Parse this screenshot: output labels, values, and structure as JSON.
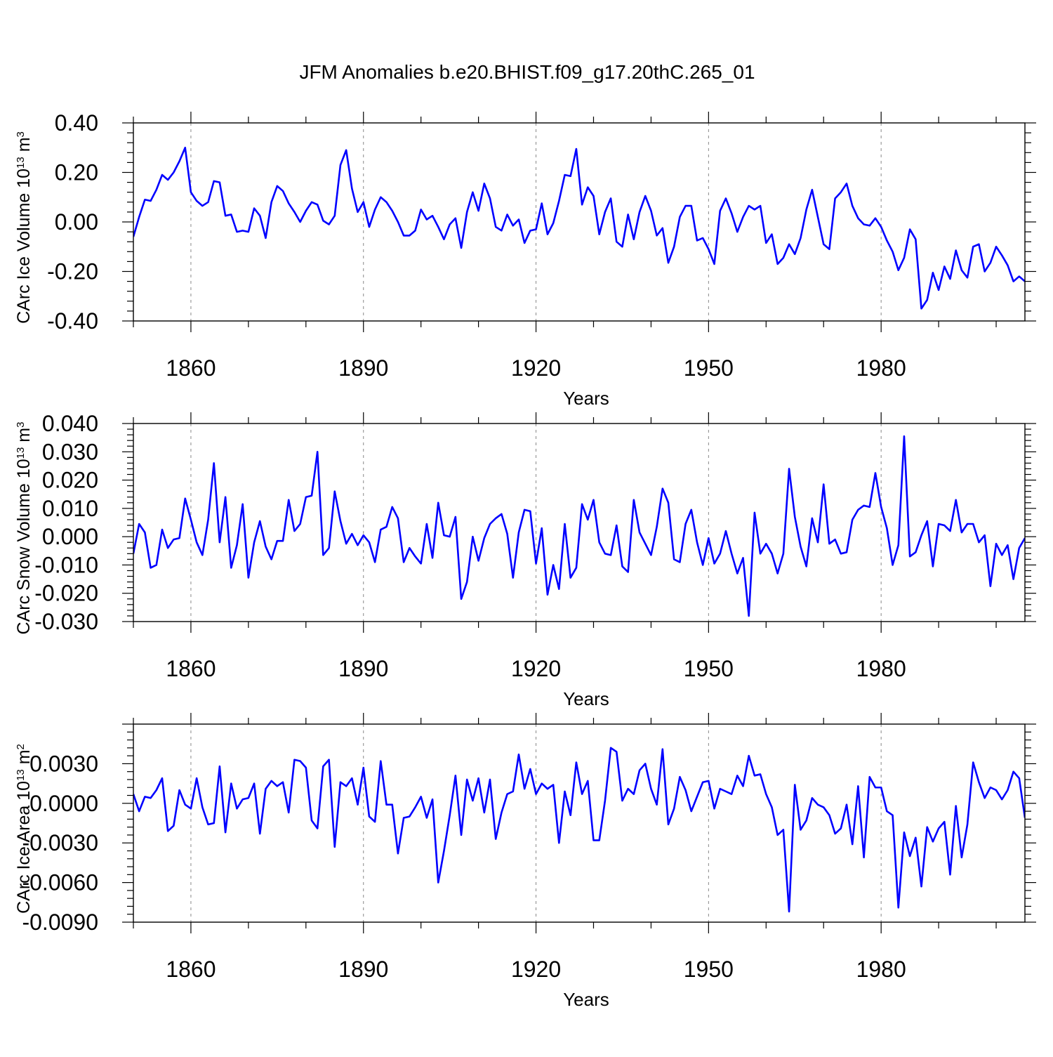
{
  "title": "JFM Anomalies b.e20.BHIST.f09_g17.20thC.265_01",
  "colors": {
    "line": "#0000ff",
    "axes": "#000000",
    "grid": "#888888"
  },
  "chart_data": [
    {
      "type": "line",
      "ylabel": "CArc Ice Volume 10",
      "ylabel_exp": "13",
      "ylabel_unit": " m",
      "ylabel_unit_exp": "3",
      "xlabel": "Years",
      "xlim": [
        1850,
        2005
      ],
      "ylim": [
        -0.4,
        0.4
      ],
      "xticks": [
        1860,
        1890,
        1920,
        1950,
        1980
      ],
      "yticks": [
        -0.4,
        -0.2,
        0.0,
        0.2,
        0.4
      ],
      "ytick_labels": [
        "-0.40",
        "-0.20",
        "0.00",
        "0.20",
        "0.40"
      ],
      "series": [
        {
          "name": "CArc Ice Volume",
          "x_start": 1850,
          "values": [
            -0.06,
            0.02,
            0.09,
            0.085,
            0.13,
            0.19,
            0.17,
            0.2,
            0.245,
            0.3,
            0.12,
            0.085,
            0.065,
            0.08,
            0.165,
            0.16,
            0.025,
            0.03,
            -0.04,
            -0.035,
            -0.04,
            0.055,
            0.025,
            -0.065,
            0.08,
            0.145,
            0.125,
            0.075,
            0.04,
            0.0,
            0.045,
            0.08,
            0.07,
            0.005,
            -0.01,
            0.025,
            0.23,
            0.29,
            0.135,
            0.04,
            0.08,
            -0.02,
            0.05,
            0.1,
            0.08,
            0.045,
            0.0,
            -0.055,
            -0.055,
            -0.035,
            0.05,
            0.01,
            0.025,
            -0.02,
            -0.07,
            -0.01,
            0.015,
            -0.105,
            0.04,
            0.12,
            0.045,
            0.155,
            0.095,
            -0.02,
            -0.035,
            0.03,
            -0.015,
            0.01,
            -0.085,
            -0.035,
            -0.03,
            0.075,
            -0.05,
            -0.005,
            0.085,
            0.19,
            0.185,
            0.295,
            0.07,
            0.14,
            0.105,
            -0.05,
            0.04,
            0.095,
            -0.08,
            -0.1,
            0.03,
            -0.07,
            0.04,
            0.105,
            0.045,
            -0.055,
            -0.025,
            -0.165,
            -0.1,
            0.02,
            0.065,
            0.065,
            -0.075,
            -0.065,
            -0.11,
            -0.17,
            0.045,
            0.095,
            0.035,
            -0.04,
            0.02,
            0.065,
            0.05,
            0.065,
            -0.085,
            -0.05,
            -0.17,
            -0.145,
            -0.09,
            -0.13,
            -0.065,
            0.05,
            0.13,
            0.02,
            -0.09,
            -0.11,
            0.095,
            0.12,
            0.155,
            0.065,
            0.015,
            -0.01,
            -0.015,
            0.015,
            -0.02,
            -0.075,
            -0.12,
            -0.195,
            -0.145,
            -0.03,
            -0.07,
            -0.35,
            -0.315,
            -0.205,
            -0.275,
            -0.18,
            -0.23,
            -0.115,
            -0.195,
            -0.225,
            -0.1,
            -0.09,
            -0.2,
            -0.165,
            -0.1,
            -0.135,
            -0.175,
            -0.24,
            -0.22,
            -0.24
          ]
        }
      ]
    },
    {
      "type": "line",
      "ylabel": "CArc Snow Volume 10",
      "ylabel_exp": "13",
      "ylabel_unit": " m",
      "ylabel_unit_exp": "3",
      "xlabel": "Years",
      "xlim": [
        1850,
        2005
      ],
      "ylim": [
        -0.03,
        0.04
      ],
      "xticks": [
        1860,
        1890,
        1920,
        1950,
        1980
      ],
      "yticks": [
        -0.03,
        -0.02,
        -0.01,
        0.0,
        0.01,
        0.02,
        0.03,
        0.04
      ],
      "ytick_labels": [
        "-0.030",
        "-0.020",
        "-0.010",
        "0.000",
        "0.010",
        "0.020",
        "0.030",
        "0.040"
      ],
      "series": [
        {
          "name": "CArc Snow Volume",
          "x_start": 1850,
          "values": [
            -0.006,
            0.0045,
            0.0015,
            -0.011,
            -0.01,
            0.0025,
            -0.004,
            -0.001,
            -0.0005,
            0.0135,
            0.006,
            -0.002,
            -0.0065,
            0.006,
            0.026,
            -0.002,
            0.014,
            -0.011,
            -0.003,
            0.0115,
            -0.0145,
            -0.002,
            0.0055,
            -0.0035,
            -0.008,
            -0.0015,
            -0.0015,
            0.013,
            0.002,
            0.0045,
            0.014,
            0.0145,
            0.03,
            -0.0065,
            -0.004,
            0.016,
            0.0055,
            -0.0025,
            0.001,
            -0.003,
            0.0005,
            -0.002,
            -0.009,
            0.0025,
            0.0035,
            0.0105,
            0.0065,
            -0.009,
            -0.004,
            -0.007,
            -0.0095,
            0.0045,
            -0.0075,
            0.012,
            0.0005,
            0.0,
            0.007,
            -0.022,
            -0.016,
            0.0,
            -0.0085,
            -0.0005,
            0.0045,
            0.0065,
            0.008,
            0.001,
            -0.0145,
            0.0015,
            0.0095,
            0.009,
            -0.0095,
            0.003,
            -0.0205,
            -0.01,
            -0.0185,
            0.0045,
            -0.0145,
            -0.011,
            0.0115,
            0.006,
            0.013,
            -0.002,
            -0.006,
            -0.0065,
            0.004,
            -0.0105,
            -0.0125,
            0.013,
            0.0015,
            -0.0025,
            -0.0065,
            0.0035,
            0.017,
            0.012,
            -0.008,
            -0.009,
            0.0045,
            0.0095,
            -0.002,
            -0.01,
            -0.0005,
            -0.0095,
            -0.006,
            0.002,
            -0.006,
            -0.013,
            -0.0075,
            -0.028,
            0.0085,
            -0.006,
            -0.0025,
            -0.006,
            -0.013,
            -0.006,
            0.024,
            0.007,
            -0.0035,
            -0.0105,
            0.0065,
            -0.002,
            0.0185,
            -0.0025,
            -0.001,
            -0.006,
            -0.0055,
            0.006,
            0.0095,
            0.011,
            0.0105,
            0.0225,
            0.0105,
            0.003,
            -0.01,
            -0.003,
            0.0355,
            -0.007,
            -0.0055,
            0.0005,
            0.0055,
            -0.0105,
            0.0045,
            0.004,
            0.002,
            0.013,
            0.0015,
            0.0045,
            0.0045,
            -0.002,
            0.0005,
            -0.0175,
            -0.0025,
            -0.0065,
            -0.003,
            -0.015,
            -0.004,
            -0.0005
          ]
        }
      ]
    },
    {
      "type": "line",
      "ylabel": "CArc Ice Area 10",
      "ylabel_exp": "13",
      "ylabel_unit": " m",
      "ylabel_unit_exp": "2",
      "xlabel": "Years",
      "xlim": [
        1850,
        2005
      ],
      "ylim": [
        -0.009,
        0.006
      ],
      "xticks": [
        1860,
        1890,
        1920,
        1950,
        1980
      ],
      "yticks": [
        -0.009,
        -0.006,
        -0.003,
        0.0,
        0.003
      ],
      "ytick_labels": [
        "-0.0090",
        "-0.0060",
        "-0.0030",
        "0.0000",
        "0.0030"
      ],
      "series": [
        {
          "name": "CArc Ice Area",
          "x_start": 1850,
          "values": [
            0.0007,
            -0.0006,
            0.0005,
            0.0004,
            0.001,
            0.0019,
            -0.0021,
            -0.0017,
            0.001,
            -0.0001,
            -0.0004,
            0.0019,
            -0.0003,
            -0.0016,
            -0.0015,
            0.0028,
            -0.0022,
            0.0015,
            -0.0004,
            0.0003,
            0.0004,
            0.0015,
            -0.0023,
            0.0011,
            0.0017,
            0.0013,
            0.0016,
            -0.0007,
            0.0033,
            0.0032,
            0.0027,
            -0.0013,
            -0.0019,
            0.0028,
            0.0033,
            -0.0033,
            0.0016,
            0.0013,
            0.0019,
            -0.0001,
            0.0027,
            -0.001,
            -0.0014,
            0.0032,
            -0.0001,
            -0.0001,
            -0.0038,
            -0.0011,
            -0.001,
            -0.0003,
            0.0005,
            -0.0011,
            0.0003,
            -0.006,
            -0.0036,
            -0.0009,
            0.0021,
            -0.0024,
            0.0018,
            0.0002,
            0.0019,
            -0.0007,
            0.0018,
            -0.0027,
            -0.0007,
            0.0007,
            0.0009,
            0.0037,
            0.0011,
            0.0026,
            0.0007,
            0.0015,
            0.0011,
            0.0014,
            -0.003,
            0.0009,
            -0.0009,
            0.0031,
            0.0007,
            0.0017,
            -0.0028,
            -0.0028,
            0.0002,
            0.0042,
            0.0039,
            0.0002,
            0.0011,
            0.0007,
            0.0025,
            0.003,
            0.0011,
            -0.0001,
            0.0041,
            -0.0016,
            -0.0004,
            0.002,
            0.001,
            -0.0006,
            0.0005,
            0.0016,
            0.0017,
            -0.0004,
            0.0011,
            0.0009,
            0.0007,
            0.0021,
            0.0013,
            0.0036,
            0.0021,
            0.0022,
            0.0007,
            -0.0003,
            -0.0024,
            -0.002,
            -0.0082,
            0.0014,
            -0.002,
            -0.0013,
            0.0004,
            -0.0001,
            -0.0003,
            -0.0009,
            -0.0023,
            -0.0019,
            -0.0001,
            -0.0031,
            0.0013,
            -0.0041,
            0.002,
            0.0012,
            0.0012,
            -0.0006,
            -0.0009,
            -0.0079,
            -0.0022,
            -0.004,
            -0.0026,
            -0.0063,
            -0.0018,
            -0.0029,
            -0.0019,
            -0.0014,
            -0.0054,
            -0.0002,
            -0.0041,
            -0.0016,
            0.0031,
            0.0016,
            0.0004,
            0.0012,
            0.001,
            0.0003,
            0.001,
            0.0024,
            0.0019,
            -0.0011
          ]
        }
      ]
    }
  ]
}
